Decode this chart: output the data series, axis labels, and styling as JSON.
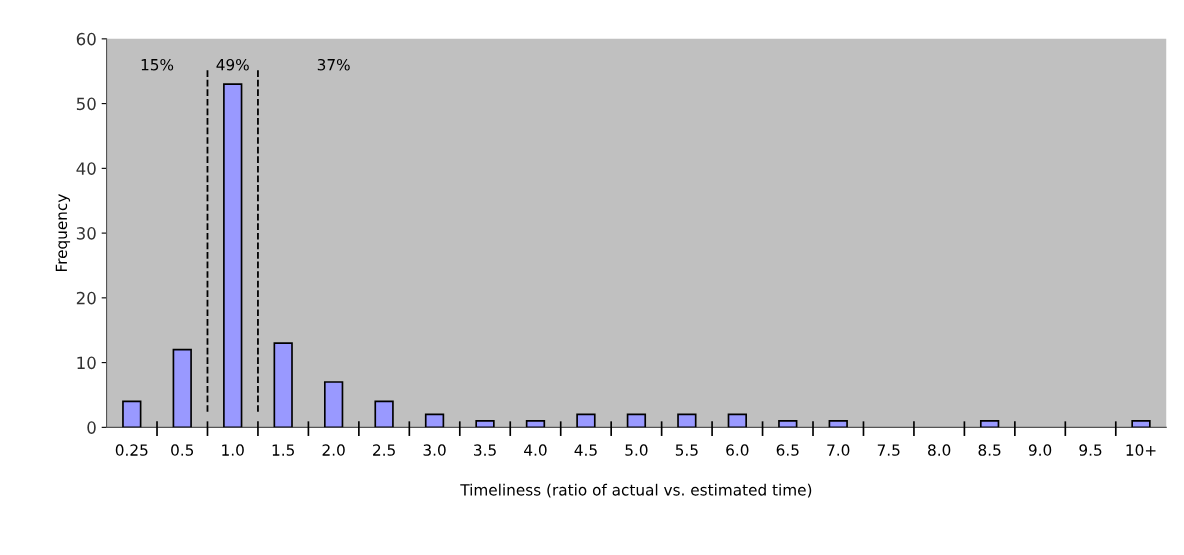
{
  "chart_data": {
    "type": "bar",
    "categories": [
      "0.25",
      "0.5",
      "1.0",
      "1.5",
      "2.0",
      "2.5",
      "3.0",
      "3.5",
      "4.0",
      "4.5",
      "5.0",
      "5.5",
      "6.0",
      "6.5",
      "7.0",
      "7.5",
      "8.0",
      "8.5",
      "9.0",
      "9.5",
      "10+"
    ],
    "values": [
      4,
      12,
      53,
      13,
      7,
      4,
      2,
      1,
      1,
      2,
      2,
      2,
      2,
      1,
      1,
      0,
      0,
      1,
      0,
      0,
      1
    ],
    "color": "#9999ff",
    "xlabel": "Timeliness (ratio of actual vs. estimated time)",
    "ylabel": "Frequency",
    "ylim": [
      0,
      60
    ],
    "yticks": [
      0,
      10,
      20,
      30,
      40,
      50,
      60
    ],
    "annotations": [
      "15%",
      "49%",
      "37%"
    ],
    "grid": false
  }
}
